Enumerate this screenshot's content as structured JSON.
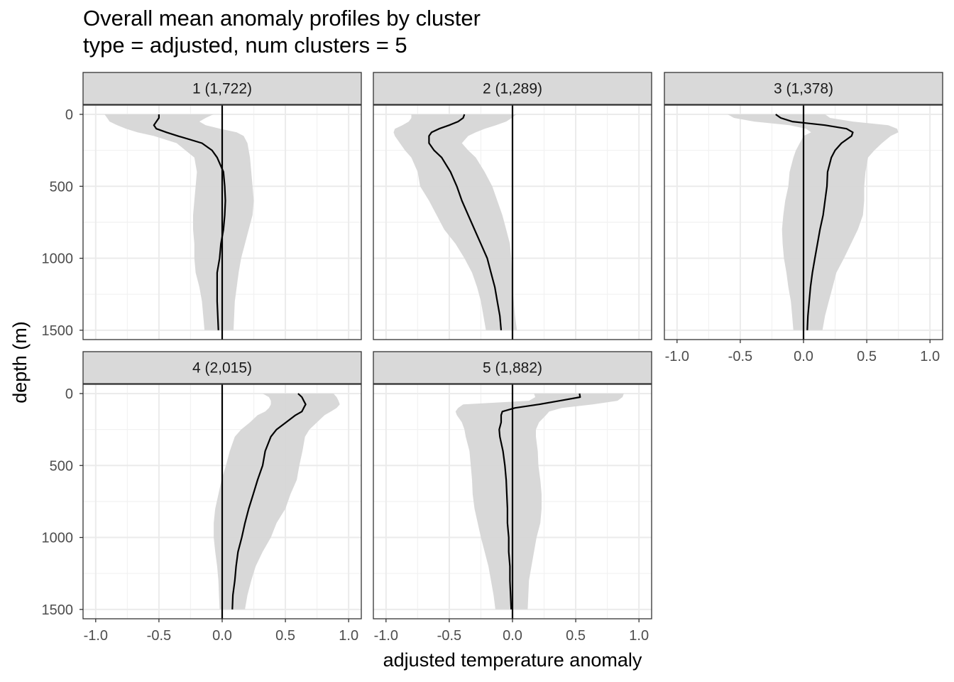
{
  "chart_data": {
    "type": "line",
    "title": "Overall mean anomaly profiles by cluster",
    "subtitle": "type = adjusted, num clusters = 5",
    "xlabel": "adjusted temperature anomaly",
    "ylabel": "depth (m)",
    "xlim": [
      -1.1,
      1.1
    ],
    "ylim": [
      1565,
      -64
    ],
    "y_reversed": true,
    "x_ticks": [
      -1.0,
      -0.5,
      0.0,
      0.5,
      1.0
    ],
    "x_tick_labels": [
      "-1.0",
      "-0.5",
      "0.0",
      "0.5",
      "1.0"
    ],
    "y_ticks": [
      0,
      500,
      1000,
      1500
    ],
    "y_tick_labels": [
      "0",
      "500",
      "1000",
      "1500"
    ],
    "grid": true,
    "ribbon_color": "#d6d6d6",
    "line_color": "#000000",
    "strip_color": "#d9d9d9",
    "depth": [
      0,
      25,
      50,
      75,
      100,
      125,
      150,
      200,
      250,
      300,
      400,
      500,
      600,
      700,
      800,
      900,
      1000,
      1100,
      1200,
      1300,
      1400,
      1500
    ],
    "panels": [
      {
        "label": "1 (1,722)",
        "mean": [
          -0.5,
          -0.5,
          -0.52,
          -0.54,
          -0.52,
          -0.44,
          -0.35,
          -0.16,
          -0.08,
          -0.04,
          0.01,
          0.02,
          0.025,
          0.02,
          0.01,
          -0.01,
          -0.02,
          -0.04,
          -0.04,
          -0.04,
          -0.035,
          -0.03
        ],
        "lower": [
          -0.93,
          -0.91,
          -0.89,
          -0.83,
          -0.76,
          -0.67,
          -0.54,
          -0.36,
          -0.29,
          -0.22,
          -0.2,
          -0.21,
          -0.22,
          -0.23,
          -0.23,
          -0.22,
          -0.22,
          -0.21,
          -0.18,
          -0.16,
          -0.15,
          -0.14
        ],
        "upper": [
          -0.07,
          -0.13,
          -0.18,
          -0.13,
          -0.015,
          0.115,
          0.17,
          0.2,
          0.21,
          0.22,
          0.23,
          0.24,
          0.25,
          0.24,
          0.21,
          0.18,
          0.15,
          0.13,
          0.115,
          0.1,
          0.095,
          0.09
        ]
      },
      {
        "label": "2 (1,289)",
        "mean": [
          -0.38,
          -0.39,
          -0.43,
          -0.5,
          -0.58,
          -0.64,
          -0.66,
          -0.66,
          -0.62,
          -0.56,
          -0.49,
          -0.44,
          -0.4,
          -0.35,
          -0.3,
          -0.25,
          -0.2,
          -0.17,
          -0.14,
          -0.12,
          -0.1,
          -0.09
        ],
        "lower": [
          -0.8,
          -0.8,
          -0.82,
          -0.87,
          -0.93,
          -0.94,
          -0.93,
          -0.89,
          -0.85,
          -0.8,
          -0.75,
          -0.73,
          -0.66,
          -0.6,
          -0.54,
          -0.45,
          -0.38,
          -0.32,
          -0.28,
          -0.25,
          -0.23,
          -0.21
        ],
        "upper": [
          0.03,
          -0.005,
          -0.05,
          -0.13,
          -0.22,
          -0.29,
          -0.35,
          -0.4,
          -0.35,
          -0.29,
          -0.22,
          -0.16,
          -0.12,
          -0.08,
          -0.05,
          -0.02,
          -0.01,
          -0.005,
          0.0,
          0.01,
          0.02,
          0.035
        ]
      },
      {
        "label": "3 (1,378)",
        "mean": [
          -0.22,
          -0.18,
          -0.09,
          0.17,
          0.34,
          0.39,
          0.38,
          0.3,
          0.25,
          0.22,
          0.19,
          0.185,
          0.17,
          0.155,
          0.13,
          0.11,
          0.09,
          0.07,
          0.055,
          0.045,
          0.035,
          0.03
        ],
        "lower": [
          -0.6,
          -0.55,
          -0.39,
          -0.11,
          0.02,
          0.06,
          0.0,
          -0.03,
          -0.06,
          -0.08,
          -0.11,
          -0.12,
          -0.145,
          -0.16,
          -0.17,
          -0.165,
          -0.155,
          -0.135,
          -0.12,
          -0.1,
          -0.09,
          -0.08
        ],
        "upper": [
          0.17,
          0.21,
          0.39,
          0.67,
          0.74,
          0.75,
          0.69,
          0.62,
          0.56,
          0.51,
          0.49,
          0.48,
          0.48,
          0.47,
          0.43,
          0.375,
          0.32,
          0.26,
          0.23,
          0.2,
          0.17,
          0.15
        ]
      },
      {
        "label": "4 (2,015)",
        "mean": [
          0.6,
          0.63,
          0.645,
          0.66,
          0.645,
          0.63,
          0.58,
          0.505,
          0.43,
          0.385,
          0.34,
          0.32,
          0.28,
          0.245,
          0.21,
          0.18,
          0.155,
          0.125,
          0.11,
          0.1,
          0.085,
          0.08
        ],
        "lower": [
          0.32,
          0.37,
          0.385,
          0.385,
          0.37,
          0.34,
          0.28,
          0.22,
          0.15,
          0.1,
          0.06,
          0.03,
          -0.005,
          -0.03,
          -0.055,
          -0.067,
          -0.067,
          -0.055,
          -0.04,
          -0.03,
          -0.025,
          -0.02
        ],
        "upper": [
          0.88,
          0.905,
          0.92,
          0.93,
          0.905,
          0.86,
          0.81,
          0.75,
          0.69,
          0.655,
          0.635,
          0.61,
          0.59,
          0.54,
          0.5,
          0.43,
          0.385,
          0.32,
          0.265,
          0.23,
          0.2,
          0.18
        ]
      },
      {
        "label": "5 (1,882)",
        "mean": [
          0.53,
          0.535,
          0.375,
          0.21,
          0.02,
          -0.08,
          -0.09,
          -0.09,
          -0.105,
          -0.1,
          -0.075,
          -0.06,
          -0.05,
          -0.045,
          -0.04,
          -0.04,
          -0.03,
          -0.03,
          -0.02,
          -0.02,
          -0.015,
          -0.01
        ],
        "lower": [
          0.17,
          0.18,
          0.13,
          -0.39,
          -0.43,
          -0.45,
          -0.44,
          -0.4,
          -0.38,
          -0.37,
          -0.34,
          -0.33,
          -0.32,
          -0.315,
          -0.3,
          -0.275,
          -0.25,
          -0.22,
          -0.19,
          -0.17,
          -0.15,
          -0.135
        ],
        "upper": [
          0.88,
          0.87,
          0.83,
          0.635,
          0.39,
          0.29,
          0.265,
          0.21,
          0.185,
          0.185,
          0.2,
          0.205,
          0.22,
          0.23,
          0.23,
          0.22,
          0.19,
          0.17,
          0.15,
          0.13,
          0.125,
          0.12
        ]
      }
    ]
  }
}
